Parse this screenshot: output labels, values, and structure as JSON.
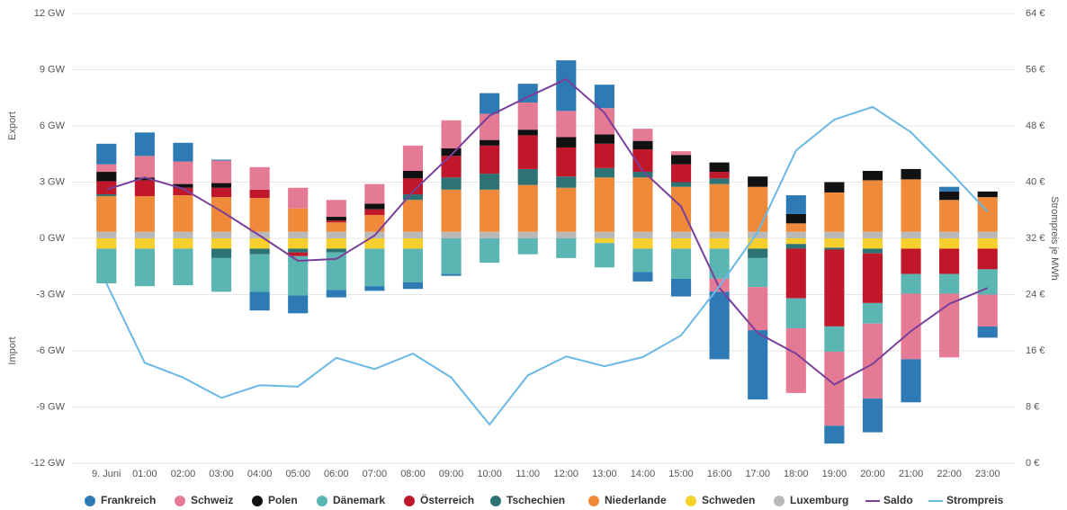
{
  "chart_data": {
    "type": "bar",
    "stacked": true,
    "y_label_top": "Export",
    "y_label_bottom": "Import",
    "y2_label": "Strompreis je MWh",
    "categories": [
      "9. Juni",
      "01:00",
      "02:00",
      "03:00",
      "04:00",
      "05:00",
      "06:00",
      "07:00",
      "08:00",
      "09:00",
      "10:00",
      "11:00",
      "12:00",
      "13:00",
      "14:00",
      "15:00",
      "16:00",
      "17:00",
      "18:00",
      "19:00",
      "20:00",
      "21:00",
      "22:00",
      "23:00"
    ],
    "ylim": [
      -12,
      12
    ],
    "yticks": [
      {
        "value": -12,
        "label": "-12 GW"
      },
      {
        "value": -9,
        "label": "-9 GW"
      },
      {
        "value": -6,
        "label": "-6 GW"
      },
      {
        "value": -3,
        "label": "-3 GW"
      },
      {
        "value": 0,
        "label": "0 GW"
      },
      {
        "value": 3,
        "label": "3 GW"
      },
      {
        "value": 6,
        "label": "6 GW"
      },
      {
        "value": 9,
        "label": "9 GW"
      },
      {
        "value": 12,
        "label": "12 GW"
      }
    ],
    "y2lim": [
      0,
      64
    ],
    "y2ticks": [
      {
        "value": 0,
        "label": "0 €"
      },
      {
        "value": 8,
        "label": "8 €"
      },
      {
        "value": 16,
        "label": "16 €"
      },
      {
        "value": 24,
        "label": "24 €"
      },
      {
        "value": 32,
        "label": "32 €"
      },
      {
        "value": 40,
        "label": "40 €"
      },
      {
        "value": 48,
        "label": "48 €"
      },
      {
        "value": 56,
        "label": "56 €"
      },
      {
        "value": 64,
        "label": "64 €"
      }
    ],
    "grid": true,
    "legend": "bottom",
    "series": [
      {
        "name": "Frankreich",
        "color": "#2e7ab4",
        "values": [
          1.1,
          1.25,
          1.0,
          0.05,
          -1.0,
          -0.95,
          -0.4,
          -0.25,
          -0.35,
          -0.1,
          1.1,
          1.0,
          2.7,
          1.25,
          -0.5,
          -0.95,
          -3.6,
          -3.7,
          1.0,
          -0.95,
          -1.8,
          -2.3,
          0.25,
          -0.6
        ]
      },
      {
        "name": "Schweiz",
        "color": "#e47a93",
        "values": [
          0.4,
          1.15,
          1.2,
          1.2,
          1.2,
          1.1,
          0.9,
          1.05,
          1.35,
          1.5,
          1.4,
          1.45,
          1.4,
          1.4,
          0.65,
          0.2,
          -0.7,
          -2.3,
          -3.45,
          -3.95,
          -4.0,
          -3.5,
          -3.4,
          -1.7
        ]
      },
      {
        "name": "Polen",
        "color": "#111111",
        "values": [
          0.5,
          0.15,
          0.2,
          0.25,
          0,
          0,
          0.2,
          0.3,
          0.4,
          0.4,
          0.3,
          0.3,
          0.55,
          0.5,
          0.45,
          0.5,
          0.5,
          0.55,
          0.5,
          0.55,
          0.5,
          0.55,
          0.45,
          0.3
        ]
      },
      {
        "name": "Dänemark",
        "color": "#5bb5b3",
        "values": [
          -1.85,
          -2.0,
          -1.95,
          -1.8,
          -2.0,
          -2.1,
          -2.0,
          -2.0,
          -1.8,
          -1.9,
          -1.3,
          -0.85,
          -1.05,
          -1.3,
          -1.25,
          -1.6,
          -1.6,
          -1.55,
          -1.6,
          -1.35,
          -1.1,
          -1.05,
          -1.05,
          -1.35
        ]
      },
      {
        "name": "Österreich",
        "color": "#c0182a",
        "values": [
          0.7,
          0.85,
          0.4,
          0.5,
          0.45,
          -0.2,
          0.1,
          0.3,
          0.85,
          1.15,
          1.5,
          1.8,
          1.55,
          1.3,
          1.2,
          0.95,
          0.35,
          0,
          -2.65,
          -4.1,
          -2.65,
          -1.35,
          -1.35,
          -1.1
        ]
      },
      {
        "name": "Tschechien",
        "color": "#2e7373",
        "values": [
          0.1,
          0,
          0,
          -0.5,
          -0.3,
          -0.2,
          -0.2,
          0,
          0.3,
          0.65,
          0.85,
          0.85,
          0.6,
          0.5,
          0.3,
          0.25,
          0.3,
          -0.5,
          -0.25,
          -0.1,
          -0.25,
          0,
          0,
          0
        ]
      },
      {
        "name": "Niederlande",
        "color": "#ef8a3b",
        "values": [
          1.9,
          1.9,
          1.95,
          1.85,
          1.8,
          1.25,
          0.5,
          0.9,
          1.7,
          2.25,
          2.25,
          2.5,
          2.35,
          2.9,
          2.9,
          2.4,
          2.55,
          2.4,
          0.45,
          2.1,
          2.75,
          2.8,
          1.7,
          1.85
        ]
      },
      {
        "name": "Schweden",
        "color": "#f7cf2d",
        "values": [
          -0.55,
          -0.55,
          -0.55,
          -0.55,
          -0.55,
          -0.55,
          -0.55,
          -0.55,
          -0.55,
          0,
          0,
          0,
          0,
          -0.25,
          -0.55,
          -0.55,
          -0.55,
          -0.55,
          -0.3,
          -0.5,
          -0.55,
          -0.55,
          -0.55,
          -0.55
        ]
      },
      {
        "name": "Luxemburg",
        "color": "#b9b9b9",
        "values": [
          0.35,
          0.35,
          0.35,
          0.35,
          0.35,
          0.35,
          0.35,
          0.35,
          0.35,
          0.35,
          0.35,
          0.35,
          0.35,
          0.35,
          0.35,
          0.35,
          0.35,
          0.35,
          0.35,
          0.35,
          0.35,
          0.35,
          0.35,
          0.35
        ]
      },
      {
        "name": "Saldo",
        "color": "#7a3f9b",
        "line": true,
        "values": [
          2.6,
          3.25,
          2.65,
          1.45,
          0.15,
          -1.2,
          -1.1,
          0.15,
          2.5,
          4.45,
          6.55,
          7.55,
          8.5,
          6.7,
          3.6,
          1.7,
          -2.65,
          -5.05,
          -6.15,
          -7.8,
          -6.7,
          -4.95,
          -3.5,
          -2.65
        ]
      },
      {
        "name": "Strompreis",
        "color": "#6ab8e6",
        "line": true,
        "axis": "y2",
        "values": [
          25.6,
          14.3,
          12.2,
          9.3,
          11.1,
          10.9,
          15,
          13.4,
          15.6,
          12.2,
          5.5,
          12.5,
          15.2,
          13.8,
          15.1,
          18.2,
          25.2,
          32.9,
          44.5,
          48.9,
          50.7,
          47.1,
          41.6,
          35.8
        ]
      }
    ]
  }
}
